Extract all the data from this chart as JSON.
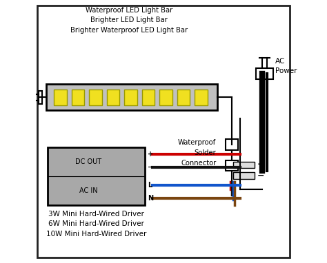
{
  "bg_color": "#ffffff",
  "border_color": "#222222",
  "led_bar_label": "Waterproof LED Light Bar\nBrighter LED Light Bar\nBrighter Waterproof LED Light Bar",
  "driver_label": "3W Mini Hard-Wired Driver\n6W Mini Hard-Wired Driver\n10W Mini Hard-Wired Driver",
  "ac_power_label": "AC\nPower",
  "waterproof_label": "Waterproof\nSolder\nConnector",
  "dc_out_label": "DC OUT",
  "ac_in_label": "AC IN",
  "led_color": "#f0e020",
  "led_bar_bg": "#c0c0c0",
  "driver_bg": "#a8a8a8",
  "wire_red": "#cc0000",
  "wire_black": "#111111",
  "wire_blue": "#1155cc",
  "wire_brown": "#7a4510",
  "wire_gray": "#888888",
  "figw": 4.74,
  "figh": 3.82,
  "dpi": 100
}
